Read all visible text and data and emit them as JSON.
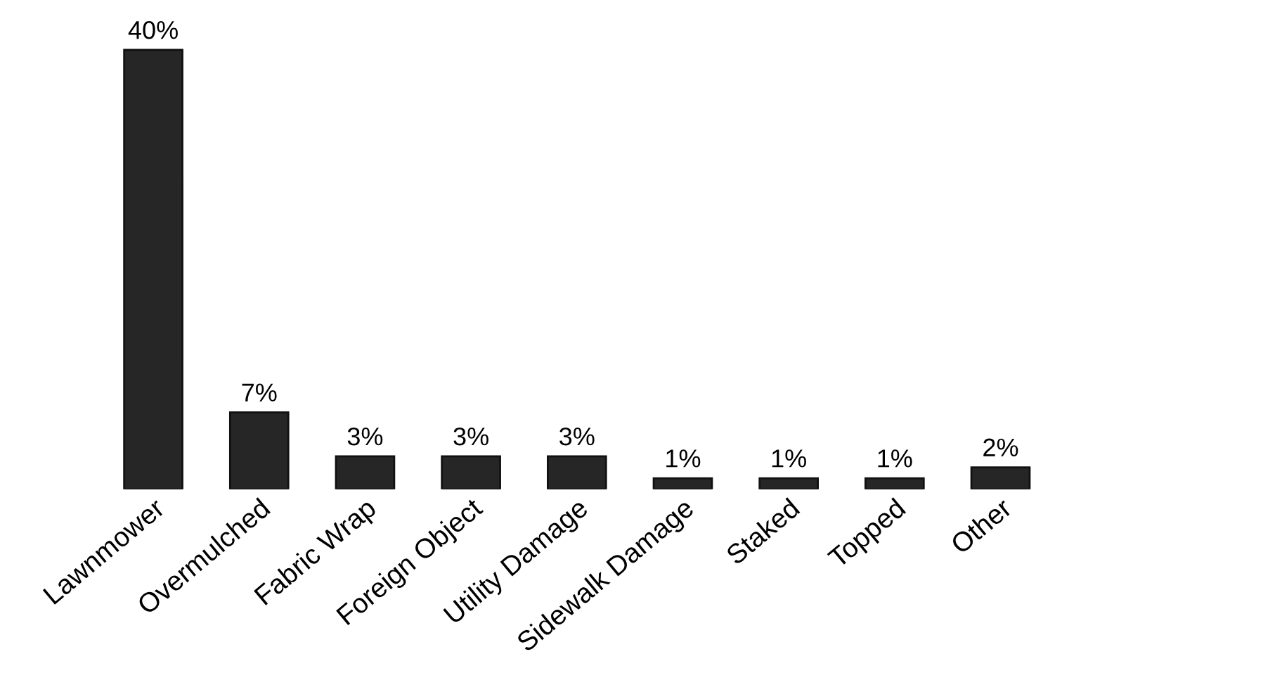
{
  "chart_data": {
    "type": "bar",
    "categories": [
      "Lawnmower",
      "Overmulched",
      "Fabric Wrap",
      "Foreign Object",
      "Utility Damage",
      "Sidewalk Damage",
      "Staked",
      "Topped",
      "Other"
    ],
    "values": [
      40,
      7,
      3,
      3,
      3,
      1,
      1,
      1,
      2
    ],
    "value_labels": [
      "40%",
      "7%",
      "3%",
      "3%",
      "3%",
      "1%",
      "1%",
      "1%",
      "2%"
    ],
    "color": "#262626",
    "tick_labels": "x",
    "grid": false,
    "legend": false
  }
}
